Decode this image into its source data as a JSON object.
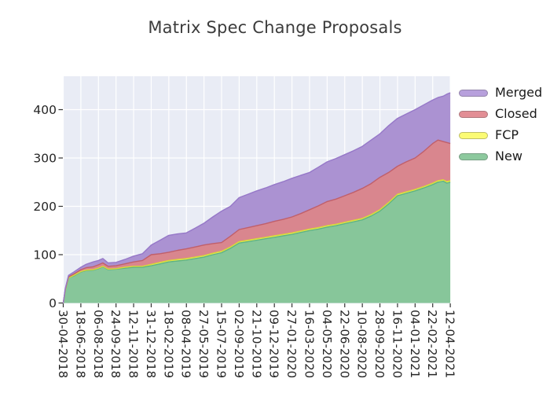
{
  "title": "Matrix Spec Change Proposals",
  "colors": {
    "plot_bg": "#e9ecf5",
    "grid": "#ffffff",
    "tick_mark": "#333333",
    "tick_text": "#262626",
    "title_text": "#3c3c3c"
  },
  "chart_data": {
    "type": "area",
    "stacked": true,
    "title": "Matrix Spec Change Proposals",
    "xlabel": "",
    "ylabel": "",
    "grid": true,
    "legend_position": "outside-right-top",
    "y_ticks": [
      0,
      100,
      200,
      300,
      400
    ],
    "ylim": [
      0,
      467
    ],
    "x_tick_labels": [
      "30-04-2018",
      "18-06-2018",
      "06-08-2018",
      "24-09-2018",
      "12-11-2018",
      "31-12-2018",
      "18-02-2019",
      "08-04-2019",
      "27-05-2019",
      "15-07-2019",
      "02-09-2019",
      "21-10-2019",
      "09-12-2019",
      "27-01-2020",
      "16-03-2020",
      "04-05-2020",
      "22-06-2020",
      "10-08-2020",
      "28-09-2020",
      "16-11-2020",
      "04-01-2021",
      "22-02-2021",
      "12-04-2021"
    ],
    "legend": [
      {
        "label": "Merged",
        "color": "#b7a0dc"
      },
      {
        "label": "Closed",
        "color": "#e28e95"
      },
      {
        "label": "FCP",
        "color": "#fbfb74"
      },
      {
        "label": "New",
        "color": "#8dc99e"
      }
    ],
    "series_order_bottom_to_top": [
      "New",
      "FCP",
      "Closed",
      "Merged"
    ],
    "t": [
      0,
      0.12,
      0.3,
      0.6,
      1,
      1.3,
      1.7,
      2,
      2.25,
      2.55,
      3,
      3.5,
      4,
      4.5,
      5,
      5.5,
      6,
      6.5,
      7,
      7.5,
      8,
      8.5,
      9,
      9.5,
      10,
      10.5,
      11,
      11.5,
      12,
      12.5,
      13,
      13.5,
      14,
      14.5,
      15,
      15.5,
      16,
      16.5,
      17,
      17.5,
      18,
      18.5,
      19,
      19.5,
      20,
      20.5,
      21,
      21.3,
      21.6,
      21.8,
      22
    ],
    "series": [
      {
        "name": "New",
        "fill": "#87c69a",
        "edge": "#5eb383",
        "values": [
          0,
          28,
          52,
          56,
          64,
          67,
          68,
          71,
          75,
          69,
          70,
          72,
          74,
          74,
          77,
          81,
          85,
          87,
          89,
          92,
          95,
          100,
          104,
          113,
          124,
          127,
          130,
          133,
          136,
          139,
          142,
          146,
          150,
          153,
          157,
          160,
          164,
          168,
          172,
          180,
          190,
          205,
          222,
          227,
          232,
          238,
          245,
          250,
          252,
          248,
          250
        ]
      },
      {
        "name": "FCP",
        "fill": "#f4f464",
        "edge": "#d8d838",
        "values": [
          0,
          0,
          0,
          1,
          1,
          1,
          1,
          1,
          1,
          1,
          1,
          2,
          2,
          2,
          3,
          3,
          3,
          3,
          3,
          3,
          3,
          3,
          3,
          3,
          3,
          3,
          3,
          3,
          3,
          3,
          3,
          3,
          3,
          3,
          3,
          3,
          3,
          3,
          3,
          3,
          3,
          3,
          3,
          3,
          3,
          3,
          3,
          3,
          3,
          3,
          3
        ]
      },
      {
        "name": "Closed",
        "fill": "#d9868e",
        "edge": "#c05f6a",
        "values": [
          0,
          1,
          2,
          3,
          4,
          5,
          6,
          7,
          7,
          6,
          6,
          7,
          9,
          12,
          20,
          18,
          17,
          19,
          20,
          21,
          22,
          20,
          18,
          22,
          25,
          26,
          27,
          28,
          30,
          31,
          33,
          36,
          40,
          45,
          50,
          52,
          55,
          58,
          62,
          64,
          67,
          62,
          58,
          62,
          65,
          73,
          82,
          84,
          79,
          81,
          77
        ]
      },
      {
        "name": "Merged",
        "fill": "#ab92d2",
        "edge": "#9678c8",
        "values": [
          0,
          2,
          3,
          4,
          5,
          7,
          10,
          9,
          9,
          7,
          7,
          9,
          12,
          14,
          20,
          28,
          35,
          34,
          33,
          39,
          45,
          55,
          65,
          62,
          66,
          69,
          72,
          74,
          76,
          78,
          80,
          79,
          77,
          80,
          82,
          84,
          85,
          86,
          87,
          90,
          90,
          97,
          99,
          99,
          100,
          96,
          90,
          88,
          94,
          100,
          105
        ]
      }
    ]
  }
}
